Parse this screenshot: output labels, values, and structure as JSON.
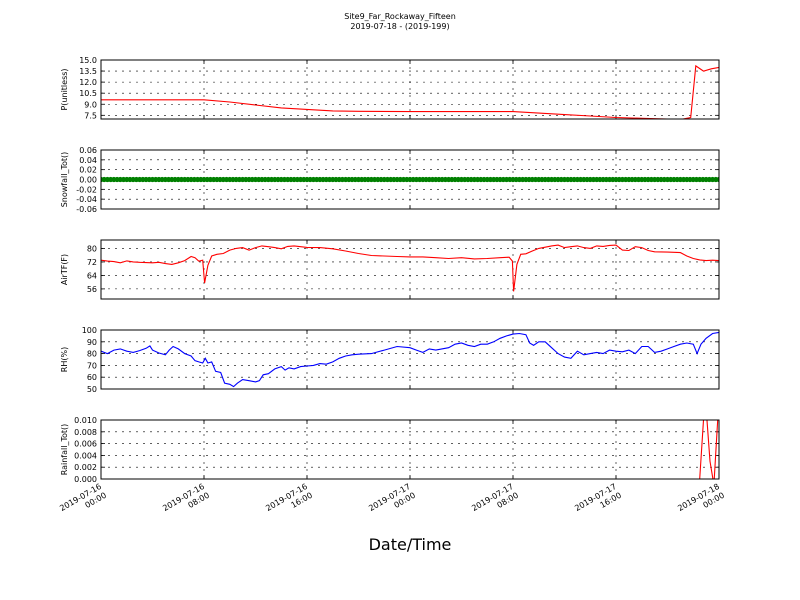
{
  "chart_data": {
    "type": "line",
    "title": "Site9_Far_Rockaway_Fifteen",
    "subtitle": "2019-07-18 - (2019-199)",
    "xlabel": "Date/Time",
    "x_ticks": [
      {
        "hours": 0,
        "line1": "2019-07-16",
        "line2": "00:00"
      },
      {
        "hours": 8,
        "line1": "2019-07-16",
        "line2": "08:00"
      },
      {
        "hours": 16,
        "line1": "2019-07-16",
        "line2": "16:00"
      },
      {
        "hours": 24,
        "line1": "2019-07-17",
        "line2": "00:00"
      },
      {
        "hours": 32,
        "line1": "2019-07-17",
        "line2": "08:00"
      },
      {
        "hours": 40,
        "line1": "2019-07-17",
        "line2": "16:00"
      },
      {
        "hours": 48,
        "line1": "2019-07-18",
        "line2": "00:00"
      }
    ],
    "x_range_hours": [
      0,
      48
    ],
    "grid": true,
    "panels": [
      {
        "ylabel": "P(unitless)",
        "ylim": [
          7.0,
          15.0
        ],
        "yticks": [
          "7.5",
          "9.0",
          "10.5",
          "12.0",
          "13.5",
          "15.0"
        ],
        "color": "#ff0000",
        "style": "line",
        "points": [
          [
            0,
            9.6
          ],
          [
            4,
            9.6
          ],
          [
            8,
            9.6
          ],
          [
            10,
            9.3
          ],
          [
            12,
            8.9
          ],
          [
            14,
            8.5
          ],
          [
            16,
            8.3
          ],
          [
            18,
            8.1
          ],
          [
            20,
            8.05
          ],
          [
            24,
            8.0
          ],
          [
            28,
            8.0
          ],
          [
            32,
            8.0
          ],
          [
            34,
            7.8
          ],
          [
            36,
            7.6
          ],
          [
            38,
            7.4
          ],
          [
            40,
            7.2
          ],
          [
            42,
            7.1
          ],
          [
            44,
            7.0
          ],
          [
            45.2,
            7.0
          ],
          [
            45.8,
            7.2
          ],
          [
            46.2,
            14.2
          ],
          [
            46.8,
            13.5
          ],
          [
            47.4,
            13.8
          ],
          [
            48,
            14.0
          ]
        ]
      },
      {
        "ylabel": "Snowfall_Tot()",
        "ylim": [
          -0.06,
          0.06
        ],
        "yticks": [
          "-0.06",
          "-0.04",
          "-0.02",
          "0.00",
          "0.02",
          "0.04",
          "0.06"
        ],
        "color": "#008000",
        "style": "markers",
        "points": [
          [
            0,
            0
          ],
          [
            48,
            0
          ]
        ]
      },
      {
        "ylabel": "AirTF(F)",
        "ylim": [
          50,
          85
        ],
        "yticks": [
          "56",
          "64",
          "72",
          "80"
        ],
        "color": "#ff0000",
        "style": "line",
        "points": [
          [
            0,
            73
          ],
          [
            0.5,
            72.5
          ],
          [
            1,
            72.2
          ],
          [
            1.5,
            71.5
          ],
          [
            2,
            72.6
          ],
          [
            2.5,
            72.0
          ],
          [
            3,
            71.8
          ],
          [
            4,
            71.5
          ],
          [
            4.5,
            71.8
          ],
          [
            5,
            71.0
          ],
          [
            5.5,
            70.5
          ],
          [
            6,
            71.5
          ],
          [
            6.5,
            72.8
          ],
          [
            7,
            75.2
          ],
          [
            7.3,
            74.5
          ],
          [
            7.6,
            72.5
          ],
          [
            7.9,
            73.0
          ],
          [
            8.05,
            59.5
          ],
          [
            8.3,
            70.0
          ],
          [
            8.6,
            75.5
          ],
          [
            9,
            76.5
          ],
          [
            9.5,
            77.0
          ],
          [
            10,
            79.0
          ],
          [
            10.5,
            80.0
          ],
          [
            11,
            80.5
          ],
          [
            11.5,
            79.0
          ],
          [
            12,
            80.5
          ],
          [
            12.5,
            81.5
          ],
          [
            13,
            81.0
          ],
          [
            13.5,
            80.5
          ],
          [
            14,
            79.8
          ],
          [
            14.5,
            81.2
          ],
          [
            15,
            81.5
          ],
          [
            15.5,
            81.0
          ],
          [
            16,
            80.6
          ],
          [
            17,
            80.5
          ],
          [
            18,
            79.8
          ],
          [
            19,
            78.5
          ],
          [
            20,
            77.0
          ],
          [
            21,
            75.8
          ],
          [
            22,
            75.5
          ],
          [
            23,
            75.2
          ],
          [
            24,
            75.0
          ],
          [
            25,
            75.0
          ],
          [
            26,
            74.5
          ],
          [
            27,
            74.0
          ],
          [
            28,
            74.5
          ],
          [
            29,
            73.8
          ],
          [
            30,
            74.0
          ],
          [
            31,
            74.5
          ],
          [
            31.7,
            74.8
          ],
          [
            31.95,
            72.5
          ],
          [
            32.05,
            54.5
          ],
          [
            32.3,
            70.5
          ],
          [
            32.6,
            76.5
          ],
          [
            33,
            76.8
          ],
          [
            33.5,
            78.5
          ],
          [
            34,
            80.0
          ],
          [
            35,
            81.5
          ],
          [
            35.5,
            82.0
          ],
          [
            36,
            80.5
          ],
          [
            36.5,
            81.0
          ],
          [
            37,
            81.5
          ],
          [
            37.5,
            80.5
          ],
          [
            38,
            80.0
          ],
          [
            38.5,
            81.5
          ],
          [
            39,
            81.2
          ],
          [
            39.5,
            81.8
          ],
          [
            40,
            82.0
          ],
          [
            40.5,
            79.0
          ],
          [
            41,
            78.8
          ],
          [
            41.5,
            81.0
          ],
          [
            42,
            80.5
          ],
          [
            42.5,
            78.8
          ],
          [
            43,
            78.0
          ],
          [
            44,
            77.8
          ],
          [
            45,
            77.5
          ],
          [
            45.5,
            75.5
          ],
          [
            46,
            74.0
          ],
          [
            46.5,
            73.2
          ],
          [
            47,
            72.8
          ],
          [
            47.5,
            73.0
          ],
          [
            48,
            72.8
          ]
        ]
      },
      {
        "ylabel": "RH(%)",
        "ylim": [
          50,
          100
        ],
        "yticks": [
          "50",
          "60",
          "70",
          "80",
          "90",
          "100"
        ],
        "color": "#0000ff",
        "style": "line",
        "points": [
          [
            0,
            82
          ],
          [
            0.5,
            80
          ],
          [
            1,
            83
          ],
          [
            1.5,
            84
          ],
          [
            2,
            82
          ],
          [
            2.5,
            81
          ],
          [
            3,
            82.5
          ],
          [
            3.5,
            84.5
          ],
          [
            3.8,
            86.5
          ],
          [
            4,
            83
          ],
          [
            4.5,
            80.5
          ],
          [
            5,
            79
          ],
          [
            5.3,
            83
          ],
          [
            5.6,
            86
          ],
          [
            6,
            84
          ],
          [
            6.5,
            80
          ],
          [
            7,
            78
          ],
          [
            7.3,
            74
          ],
          [
            7.6,
            73
          ],
          [
            7.9,
            72
          ],
          [
            8.1,
            76
          ],
          [
            8.3,
            72
          ],
          [
            8.6,
            73
          ],
          [
            8.9,
            65
          ],
          [
            9.3,
            64
          ],
          [
            9.6,
            55
          ],
          [
            10,
            54
          ],
          [
            10.3,
            52
          ],
          [
            10.6,
            55
          ],
          [
            11,
            58
          ],
          [
            11.5,
            57
          ],
          [
            12,
            56
          ],
          [
            12.3,
            57
          ],
          [
            12.6,
            62
          ],
          [
            13,
            63
          ],
          [
            13.5,
            67
          ],
          [
            14,
            69
          ],
          [
            14.3,
            66
          ],
          [
            14.6,
            68
          ],
          [
            15,
            67
          ],
          [
            15.5,
            69
          ],
          [
            16,
            69.5
          ],
          [
            16.5,
            70
          ],
          [
            17,
            71.5
          ],
          [
            17.5,
            71
          ],
          [
            18,
            73
          ],
          [
            18.5,
            76
          ],
          [
            19,
            78
          ],
          [
            19.5,
            79
          ],
          [
            20,
            79.5
          ],
          [
            21,
            80
          ],
          [
            22,
            83
          ],
          [
            23,
            86
          ],
          [
            24,
            85
          ],
          [
            24.5,
            83
          ],
          [
            25,
            81
          ],
          [
            25.5,
            84
          ],
          [
            26,
            83
          ],
          [
            27,
            85
          ],
          [
            27.5,
            88
          ],
          [
            28,
            89
          ],
          [
            28.5,
            87
          ],
          [
            29,
            86
          ],
          [
            29.5,
            88
          ],
          [
            30,
            88
          ],
          [
            30.5,
            90
          ],
          [
            31,
            93
          ],
          [
            31.5,
            95
          ],
          [
            32,
            96.5
          ],
          [
            32.5,
            97
          ],
          [
            33,
            96
          ],
          [
            33.3,
            89
          ],
          [
            33.6,
            87
          ],
          [
            34,
            90
          ],
          [
            34.5,
            90
          ],
          [
            35,
            85
          ],
          [
            35.5,
            80
          ],
          [
            36,
            77
          ],
          [
            36.5,
            76
          ],
          [
            37,
            82
          ],
          [
            37.5,
            79
          ],
          [
            38,
            80
          ],
          [
            38.5,
            81
          ],
          [
            39,
            80
          ],
          [
            39.5,
            83
          ],
          [
            40,
            82
          ],
          [
            40.5,
            81.5
          ],
          [
            41,
            83
          ],
          [
            41.5,
            80
          ],
          [
            42,
            86
          ],
          [
            42.5,
            86
          ],
          [
            43,
            81
          ],
          [
            43.5,
            82
          ],
          [
            44,
            84
          ],
          [
            44.5,
            86
          ],
          [
            45,
            88
          ],
          [
            45.5,
            89
          ],
          [
            46,
            88
          ],
          [
            46.3,
            80
          ],
          [
            46.6,
            88
          ],
          [
            47,
            93
          ],
          [
            47.5,
            97
          ],
          [
            48,
            98
          ]
        ]
      },
      {
        "ylabel": "Rainfall_Tot()",
        "ylim": [
          0,
          0.01
        ],
        "yticks": [
          "0.000",
          "0.002",
          "0.004",
          "0.006",
          "0.008",
          "0.010"
        ],
        "color": "#ff0000",
        "style": "line",
        "points": [
          [
            0,
            0
          ],
          [
            46.5,
            0
          ],
          [
            46.8,
            0.01
          ],
          [
            47.0,
            0.012
          ],
          [
            47.3,
            0.003
          ],
          [
            47.6,
            -0.001
          ],
          [
            47.9,
            0.01
          ],
          [
            48,
            0.012
          ]
        ]
      }
    ]
  }
}
